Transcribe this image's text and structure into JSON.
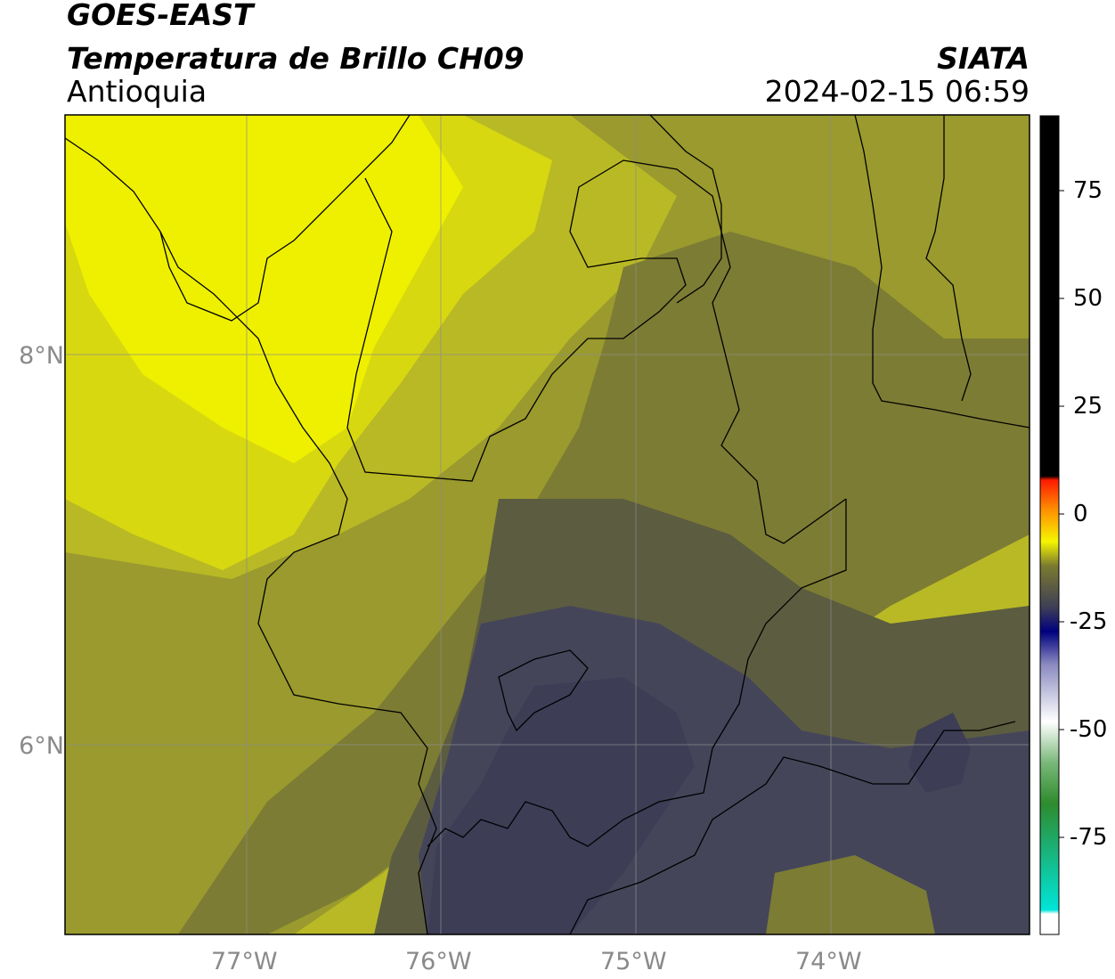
{
  "header": {
    "satellite": "GOES-EAST",
    "product": "Temperatura de Brillo CH09",
    "region": "Antioquia",
    "agency": "SIATA",
    "datetime": "2024-02-15 06:59"
  },
  "map": {
    "lat_labels": [
      "8°N",
      "6°N"
    ],
    "lon_labels": [
      "77°W",
      "76°W",
      "75°W",
      "74°W"
    ]
  },
  "colorbar": {
    "ticks": [
      "75",
      "50",
      "25",
      "0",
      "-25",
      "-50",
      "-75"
    ],
    "colors": {
      "black": "#000000",
      "red": "#ff1a00",
      "orange": "#ff8c00",
      "yellow": "#f5f500",
      "olive": "#7a7a30",
      "slate": "#3f3f56",
      "navy": "#00007f",
      "white": "#ffffff",
      "green": "#2e8b2e",
      "cyan": "#00e5d9"
    }
  },
  "palette": {
    "bright_yellow": "#eef000",
    "yellow": "#d8d810",
    "olive_light": "#b9b925",
    "olive": "#9a9a2e",
    "olive_dark": "#7c7c34",
    "gray_olive": "#5c5c40",
    "slate": "#45455a",
    "slate_dark": "#3d3d56",
    "gridline": "#8c8c8c",
    "border": "#000000"
  }
}
